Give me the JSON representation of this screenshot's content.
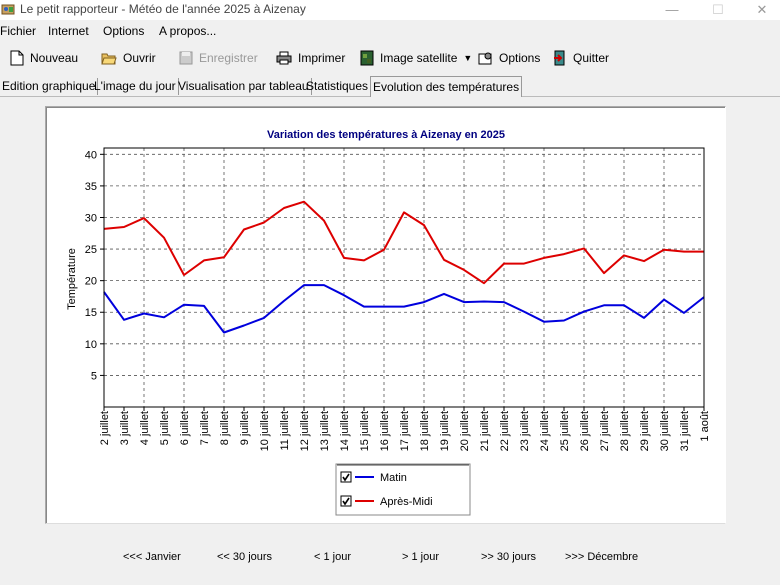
{
  "window": {
    "title": "Le petit rapporteur - Météo de l'année 2025 à Aizenay"
  },
  "menu": [
    "Fichier",
    "Internet",
    "Options",
    "A propos..."
  ],
  "toolbar": {
    "new_label": "Nouveau",
    "open_label": "Ouvrir",
    "save_label": "Enregistrer",
    "print_label": "Imprimer",
    "satellite_label": "Image satellite",
    "options_label": "Options",
    "quit_label": "Quitter"
  },
  "tabs": [
    {
      "label": "Edition graphique",
      "active": false
    },
    {
      "label": "L'image du jour",
      "active": false
    },
    {
      "label": "Visualisation par tableau",
      "active": false
    },
    {
      "label": "Statistiques",
      "active": false
    },
    {
      "label": "Evolution des températures",
      "active": true
    }
  ],
  "chart_data": {
    "type": "line",
    "title": "Variation des températures à Aizenay en 2025",
    "ylabel": "Température",
    "xlabel": "",
    "ylim": [
      0,
      41
    ],
    "yticks": [
      5,
      10,
      15,
      20,
      25,
      30,
      35,
      40
    ],
    "grid": true,
    "legend_position": "bottom-center",
    "categories": [
      "2 juillet",
      "3 juillet",
      "4 juillet",
      "5 juillet",
      "6 juillet",
      "7 juillet",
      "8 juillet",
      "9 juillet",
      "10 juillet",
      "11 juillet",
      "12 juillet",
      "13 juillet",
      "14 juillet",
      "15 juillet",
      "16 juillet",
      "17 juillet",
      "18 juillet",
      "19 juillet",
      "20 juillet",
      "21 juillet",
      "22 juillet",
      "23 juillet",
      "24 juillet",
      "25 juillet",
      "26 juillet",
      "27 juillet",
      "28 juillet",
      "29 juillet",
      "30 juillet",
      "31 juillet",
      "1 août"
    ],
    "series": [
      {
        "name": "Matin",
        "color": "#0000dd",
        "values": [
          18.2,
          13.8,
          14.8,
          14.2,
          16.2,
          16.0,
          11.8,
          12.9,
          14.1,
          16.8,
          19.3,
          19.3,
          17.7,
          15.9,
          15.9,
          15.9,
          16.6,
          17.9,
          16.6,
          16.7,
          16.6,
          15.1,
          13.5,
          13.7,
          15.1,
          16.1,
          16.1,
          14.1,
          17.0,
          14.9,
          17.4
        ]
      },
      {
        "name": "Après-Midi",
        "color": "#dd0000",
        "values": [
          28.2,
          28.5,
          29.9,
          26.8,
          20.9,
          23.2,
          23.7,
          28.1,
          29.2,
          31.5,
          32.5,
          29.5,
          23.6,
          23.2,
          24.9,
          30.8,
          28.8,
          23.3,
          21.7,
          19.6,
          22.7,
          22.7,
          23.6,
          24.2,
          25.1,
          21.2,
          24.0,
          23.1,
          24.9,
          24.6,
          24.6
        ]
      }
    ]
  },
  "navigation": [
    "<<< Janvier",
    "<< 30 jours",
    "< 1 jour",
    "> 1 jour",
    ">> 30 jours",
    ">>> Décembre"
  ]
}
